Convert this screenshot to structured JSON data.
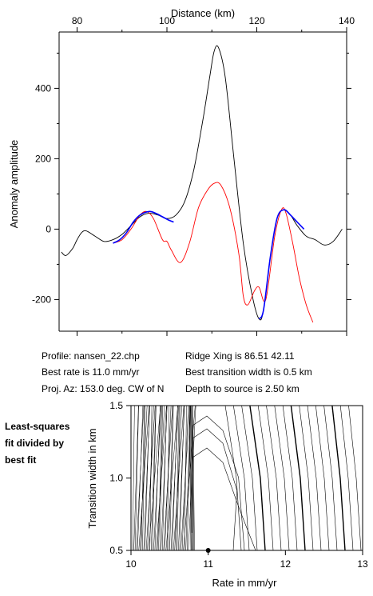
{
  "top_chart": {
    "type": "line",
    "xlabel": "Distance (km)",
    "ylabel": "Anomaly amplitude",
    "xlim": [
      76,
      140
    ],
    "ylim": [
      -290,
      560
    ],
    "x_ticks": [
      80,
      100,
      120,
      140
    ],
    "y_ticks": [
      -200,
      0,
      200,
      400
    ],
    "series": [
      {
        "name": "",
        "color": "#000000",
        "x": [
          76.5,
          77.5,
          79,
          80,
          81,
          82,
          84,
          86,
          88,
          90,
          92,
          94,
          96,
          98,
          100,
          102,
          104,
          106,
          108,
          109.5,
          110.5,
          111.5,
          113,
          115,
          117,
          119,
          120.5,
          121.5,
          123,
          124.5,
          126,
          127.5,
          129,
          131,
          133,
          135,
          137,
          139
        ],
        "y": [
          -65,
          -75,
          -55,
          -30,
          -10,
          -5,
          -20,
          -35,
          -30,
          -15,
          10,
          35,
          45,
          40,
          30,
          40,
          80,
          170,
          310,
          430,
          505,
          515,
          430,
          190,
          -40,
          -190,
          -255,
          -230,
          -80,
          30,
          55,
          40,
          10,
          -20,
          -30,
          -45,
          -35,
          0
        ]
      },
      {
        "name": "",
        "color": "#ff0000",
        "x": [
          88,
          90,
          92,
          94,
          95.5,
          97,
          99,
          100,
          101,
          103,
          105,
          107,
          109,
          110.5,
          112,
          114,
          116,
          117,
          118,
          119.5,
          120.5,
          122,
          124,
          125.5,
          126.5,
          128,
          129.5,
          131,
          132.5
        ],
        "y": [
          -40,
          -30,
          0,
          40,
          50,
          30,
          -30,
          -35,
          -60,
          -95,
          -40,
          60,
          110,
          130,
          125,
          60,
          -70,
          -190,
          -215,
          -175,
          -165,
          -200,
          -20,
          55,
          45,
          -40,
          -140,
          -215,
          -265
        ]
      },
      {
        "name": "",
        "color": "#0000ff",
        "x": [
          88,
          89.5,
          91,
          92.5,
          94,
          96,
          97.5,
          99,
          100.5,
          101.5,
          120.5,
          121.5,
          123,
          124.5,
          126,
          127.5,
          129,
          130.5
        ],
        "y": [
          -40,
          -30,
          -10,
          20,
          40,
          50,
          45,
          35,
          25,
          20,
          -255,
          -230,
          -80,
          30,
          55,
          40,
          20,
          0
        ],
        "segments": [
          [
            0,
            10
          ],
          [
            10,
            18
          ]
        ]
      }
    ]
  },
  "info": {
    "profile": "Profile: nansen_22.chp",
    "best_rate": "Best rate is 11.0 mm/yr",
    "proj_az": "Proj. Az: 153.0 deg. CW of N",
    "ridge": "Ridge Xing is 86.51 42.11",
    "transition": "Best transition width is 0.5 km",
    "depth": "Depth to source is   2.50 km"
  },
  "side_label": [
    "Least-squares",
    "fit divided by",
    "best fit"
  ],
  "contour_chart": {
    "type": "contour",
    "xlabel": "Rate in mm/yr",
    "ylabel": "Transition width in km",
    "xlim": [
      10,
      13
    ],
    "ylim": [
      0.5,
      1.5
    ],
    "x_ticks": [
      10,
      11,
      12,
      13
    ],
    "y_ticks": [
      0.5,
      1.0,
      1.5
    ],
    "y_tick_labels": [
      "0.5",
      "1.0",
      "1.5"
    ],
    "best_fit_point": {
      "rate": 11.0,
      "width": 0.5
    }
  }
}
